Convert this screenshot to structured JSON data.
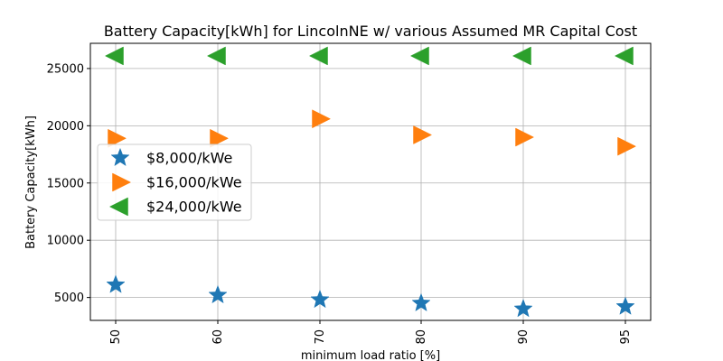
{
  "chart_data": {
    "type": "scatter",
    "title": "Battery Capacity[kWh] for LincolnNE w/ various Assumed MR Capital Cost",
    "xlabel": "minimum load ratio [%]",
    "ylabel": "Battery Capacity[kWh]",
    "categories": [
      "50",
      "60",
      "70",
      "80",
      "90",
      "95"
    ],
    "yticks": [
      5000,
      10000,
      15000,
      20000,
      25000
    ],
    "ytick_labels": [
      "5000",
      "10000",
      "15000",
      "20000",
      "25000"
    ],
    "ylim": [
      3000,
      27200
    ],
    "grid": true,
    "legend_position": "center-left",
    "series": [
      {
        "name": "$8,000/kWe",
        "marker": "star",
        "color": "#1f77b4",
        "values": [
          6100,
          5200,
          4800,
          4500,
          4000,
          4200
        ]
      },
      {
        "name": "$16,000/kWe",
        "marker": "triangle-right",
        "color": "#ff7f0e",
        "values": [
          18900,
          18900,
          20600,
          19200,
          19000,
          18200
        ]
      },
      {
        "name": "$24,000/kWe",
        "marker": "triangle-left",
        "color": "#2ca02c",
        "values": [
          26100,
          26100,
          26100,
          26100,
          26100,
          26100
        ]
      }
    ]
  }
}
